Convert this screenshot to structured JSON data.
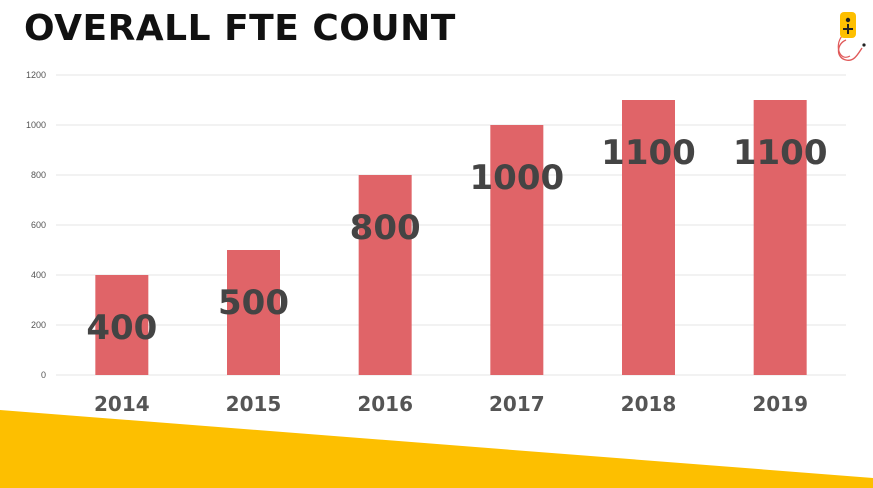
{
  "colors": {
    "bar": "#e06468",
    "accent_band": "#fdbf00",
    "title": "#111111",
    "label": "#444444"
  },
  "icons": {
    "logo": "joystick-logo-icon"
  },
  "chart_data": {
    "type": "bar",
    "title": "OVERALL FTE COUNT",
    "xlabel": "",
    "ylabel": "",
    "categories": [
      "2014",
      "2015",
      "2016",
      "2017",
      "2018",
      "2019"
    ],
    "values": [
      400,
      500,
      800,
      1000,
      1100,
      1100
    ],
    "data_labels": [
      "400",
      "500",
      "800",
      "1000",
      "1100",
      "1100"
    ],
    "ylim": [
      0,
      1200
    ],
    "yticks": [
      0,
      200,
      400,
      600,
      800,
      1000,
      1200
    ],
    "grid": true,
    "legend": "none"
  }
}
